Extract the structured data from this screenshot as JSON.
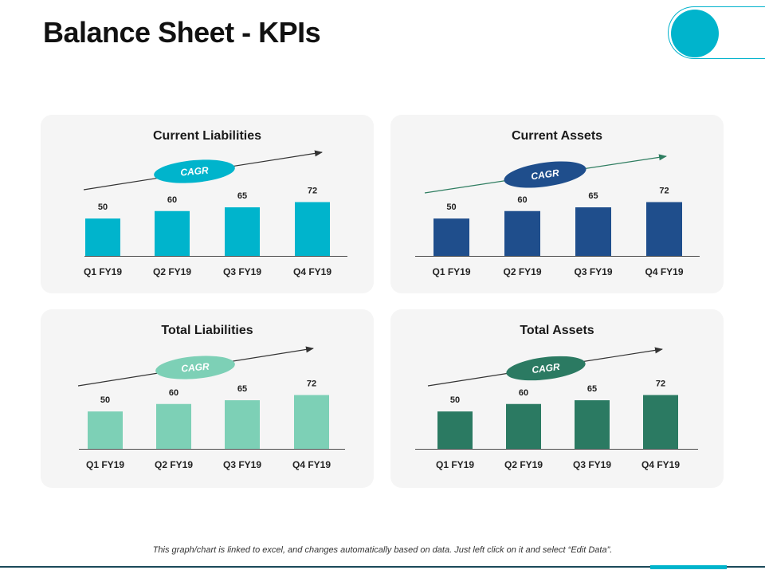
{
  "page": {
    "title": "Balance Sheet - KPIs",
    "footnote": "This graph/chart is linked to excel, and changes automatically based on data. Just left click on it and select “Edit Data”."
  },
  "colors": {
    "accent": "#00b4cc",
    "footer_line": "#1b4a5a"
  },
  "chart_data": [
    {
      "type": "bar",
      "title": "Current Liabilities",
      "categories": [
        "Q1 FY19",
        "Q2 FY19",
        "Q3 FY19",
        "Q4 FY19"
      ],
      "values": [
        50,
        60,
        65,
        72
      ],
      "annotation": "CAGR",
      "bar_color": "#00b4cc",
      "badge_color": "#00b4cc",
      "arrow_color": "#333333",
      "ylim": [
        0,
        80
      ]
    },
    {
      "type": "bar",
      "title": "Current Assets",
      "categories": [
        "Q1 FY19",
        "Q2 FY19",
        "Q3 FY19",
        "Q4 FY19"
      ],
      "values": [
        50,
        60,
        65,
        72
      ],
      "annotation": "CAGR",
      "bar_color": "#1f4e8c",
      "badge_color": "#1f4e8c",
      "arrow_color": "#2e7d60",
      "ylim": [
        0,
        80
      ]
    },
    {
      "type": "bar",
      "title": "Total Liabilities",
      "categories": [
        "Q1 FY19",
        "Q2 FY19",
        "Q3 FY19",
        "Q4 FY19"
      ],
      "values": [
        50,
        60,
        65,
        72
      ],
      "annotation": "CAGR",
      "bar_color": "#7dd0b6",
      "badge_color": "#7dd0b6",
      "arrow_color": "#333333",
      "ylim": [
        0,
        80
      ]
    },
    {
      "type": "bar",
      "title": "Total Assets",
      "categories": [
        "Q1 FY19",
        "Q2 FY19",
        "Q3 FY19",
        "Q4 FY19"
      ],
      "values": [
        50,
        60,
        65,
        72
      ],
      "annotation": "CAGR",
      "bar_color": "#2b7a62",
      "badge_color": "#2b7a62",
      "arrow_color": "#333333",
      "ylim": [
        0,
        80
      ]
    }
  ]
}
